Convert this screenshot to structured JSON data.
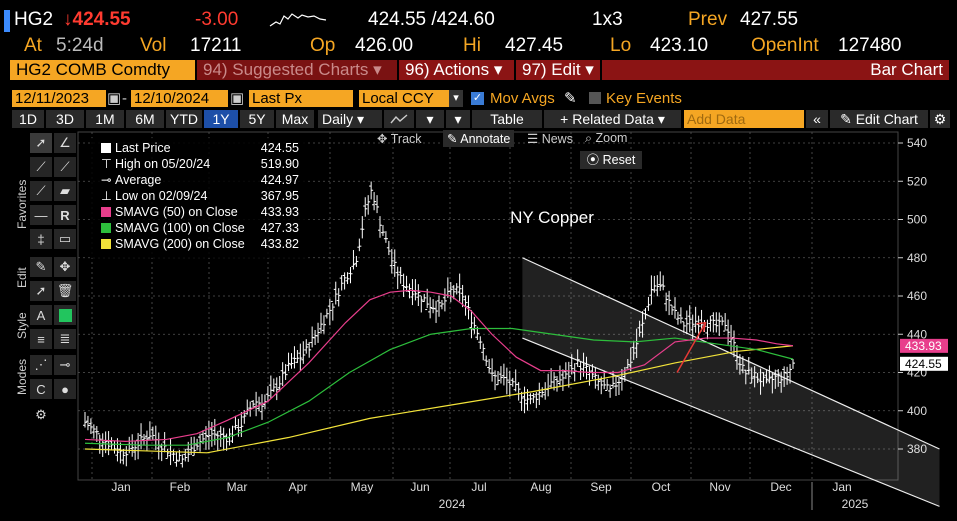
{
  "quote": {
    "ticker": "HG2",
    "last": "424.55",
    "change": "-3.00",
    "bid_ask": "424.55 /424.60",
    "size": "1x3",
    "prev_label": "Prev",
    "prev": "427.55",
    "at_label": "At",
    "at_time": "5:24d",
    "vol_label": "Vol",
    "vol": "17211",
    "op_label": "Op",
    "op": "426.00",
    "hi_label": "Hi",
    "hi": "427.45",
    "lo_label": "Lo",
    "lo": "423.10",
    "oi_label": "OpenInt",
    "oi": "127480"
  },
  "menu": {
    "security": "HG2 COMB Comdty",
    "suggested": "94) Suggested Charts ▾",
    "actions": "96) Actions ▾",
    "edit": "97) Edit ▾",
    "chart_type": "Bar Chart"
  },
  "controls": {
    "start_date": "12/11/2023",
    "end_date": "12/10/2024",
    "field": "Last Px",
    "currency": "Local CCY",
    "mov_avgs": "Mov Avgs",
    "key_events": "Key Events"
  },
  "toolbar": {
    "periods": [
      "1D",
      "3D",
      "1M",
      "6M",
      "YTD",
      "1Y",
      "5Y",
      "Max"
    ],
    "active_period": "1Y",
    "frequency": "Daily",
    "table": "Table",
    "related": "Related Data",
    "add_data_placeholder": "Add Data",
    "edit_chart": "Edit Chart",
    "track": "Track",
    "annotate": "Annotate",
    "news": "News",
    "zoom": "Zoom",
    "reset": "Reset"
  },
  "side_tabs": [
    "Favorites",
    "Edit",
    "Style",
    "Modes"
  ],
  "legend": [
    {
      "label": "Last Price",
      "value": "424.55",
      "color": "#ffffff",
      "marker": "box"
    },
    {
      "label": "High on 05/20/24",
      "value": "519.90",
      "color": "#ffffff",
      "marker": "high"
    },
    {
      "label": "Average",
      "value": "424.97",
      "color": "#ffffff",
      "marker": "avg"
    },
    {
      "label": "Low on 02/09/24",
      "value": "367.95",
      "color": "#ffffff",
      "marker": "low"
    },
    {
      "label": "SMAVG (50)  on Close",
      "value": "433.93",
      "color": "#e83e8c",
      "marker": "box"
    },
    {
      "label": "SMAVG (100)  on Close",
      "value": "427.33",
      "color": "#2dbe3c",
      "marker": "box"
    },
    {
      "label": "SMAVG (200)  on Close",
      "value": "433.82",
      "color": "#f2e33a",
      "marker": "box"
    }
  ],
  "chart_data": {
    "type": "bar",
    "title": "NY Copper",
    "ylim": [
      360,
      545
    ],
    "y_ticks": [
      380,
      400,
      420,
      440,
      460,
      480,
      500,
      520,
      540
    ],
    "x_ticks": [
      "Jan",
      "Feb",
      "Mar",
      "Apr",
      "May",
      "Jun",
      "Jul",
      "Aug",
      "Sep",
      "Oct",
      "Nov",
      "Dec",
      "Jan"
    ],
    "x_years": [
      "2024",
      "2025"
    ],
    "grid": true,
    "price_path": [
      [
        0,
        394
      ],
      [
        8,
        386
      ],
      [
        18,
        378
      ],
      [
        25,
        382
      ],
      [
        32,
        388
      ],
      [
        40,
        380
      ],
      [
        48,
        374
      ],
      [
        55,
        383
      ],
      [
        62,
        388
      ],
      [
        70,
        386
      ],
      [
        77,
        393
      ],
      [
        83,
        405
      ],
      [
        88,
        404
      ],
      [
        95,
        414
      ],
      [
        101,
        424
      ],
      [
        108,
        430
      ],
      [
        115,
        443
      ],
      [
        121,
        454
      ],
      [
        127,
        468
      ],
      [
        133,
        478
      ],
      [
        138,
        505
      ],
      [
        141,
        516
      ],
      [
        145,
        499
      ],
      [
        151,
        478
      ],
      [
        156,
        467
      ],
      [
        163,
        462
      ],
      [
        170,
        455
      ],
      [
        175,
        454
      ],
      [
        180,
        463
      ],
      [
        185,
        462
      ],
      [
        190,
        448
      ],
      [
        195,
        436
      ],
      [
        200,
        418
      ],
      [
        207,
        416
      ],
      [
        213,
        410
      ],
      [
        219,
        405
      ],
      [
        224,
        410
      ],
      [
        230,
        415
      ],
      [
        237,
        418
      ],
      [
        242,
        425
      ],
      [
        247,
        421
      ],
      [
        252,
        415
      ],
      [
        258,
        410
      ],
      [
        264,
        418
      ],
      [
        269,
        428
      ],
      [
        275,
        448
      ],
      [
        279,
        466
      ],
      [
        284,
        464
      ],
      [
        289,
        452
      ],
      [
        294,
        445
      ],
      [
        300,
        447
      ],
      [
        306,
        446
      ],
      [
        311,
        444
      ],
      [
        315,
        446
      ],
      [
        319,
        434
      ],
      [
        324,
        420
      ],
      [
        330,
        418
      ],
      [
        335,
        414
      ],
      [
        340,
        418
      ],
      [
        345,
        418
      ],
      [
        348,
        425
      ]
    ],
    "sma50": [
      [
        0,
        385
      ],
      [
        20,
        384
      ],
      [
        40,
        385
      ],
      [
        55,
        388
      ],
      [
        70,
        395
      ],
      [
        90,
        405
      ],
      [
        110,
        425
      ],
      [
        128,
        446
      ],
      [
        140,
        458
      ],
      [
        150,
        462
      ],
      [
        160,
        463
      ],
      [
        170,
        462
      ],
      [
        180,
        460
      ],
      [
        190,
        452
      ],
      [
        200,
        440
      ],
      [
        212,
        428
      ],
      [
        224,
        421
      ],
      [
        236,
        421
      ],
      [
        248,
        420
      ],
      [
        262,
        420
      ],
      [
        275,
        424
      ],
      [
        290,
        436
      ],
      [
        305,
        438
      ],
      [
        318,
        438
      ],
      [
        330,
        437
      ],
      [
        340,
        435
      ],
      [
        348,
        434
      ]
    ],
    "sma100": [
      [
        0,
        383
      ],
      [
        30,
        382
      ],
      [
        50,
        382
      ],
      [
        70,
        386
      ],
      [
        90,
        394
      ],
      [
        110,
        405
      ],
      [
        130,
        420
      ],
      [
        150,
        432
      ],
      [
        170,
        440
      ],
      [
        190,
        443
      ],
      [
        210,
        443
      ],
      [
        230,
        440
      ],
      [
        250,
        437
      ],
      [
        270,
        436
      ],
      [
        290,
        438
      ],
      [
        310,
        435
      ],
      [
        330,
        432
      ],
      [
        348,
        427
      ]
    ],
    "sma200": [
      [
        0,
        380
      ],
      [
        60,
        378
      ],
      [
        100,
        386
      ],
      [
        140,
        396
      ],
      [
        180,
        403
      ],
      [
        220,
        410
      ],
      [
        260,
        418
      ],
      [
        290,
        425
      ],
      [
        320,
        431
      ],
      [
        348,
        434
      ]
    ],
    "price_labels": [
      {
        "text": "433.93",
        "color": "#e83e8c"
      },
      {
        "text": "424.55",
        "color": "#ffffff"
      }
    ],
    "channel": {
      "upper": [
        [
          215,
          480
        ],
        [
          420,
          380
        ]
      ],
      "lower": [
        [
          215,
          438
        ],
        [
          420,
          350
        ]
      ]
    },
    "arrow": {
      "from": [
        291,
        420
      ],
      "to": [
        305,
        446
      ]
    }
  }
}
